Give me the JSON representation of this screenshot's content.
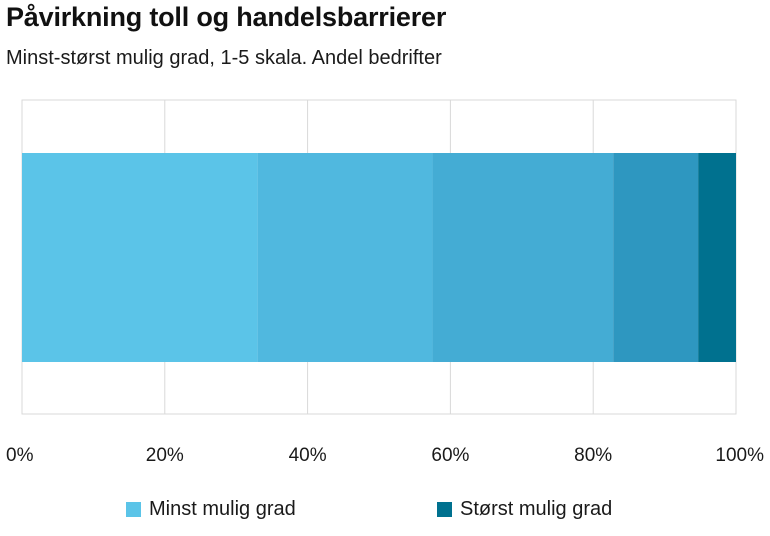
{
  "title": "Påvirkning toll og handelsbarrierer",
  "subtitle": "Minst-størst mulig grad, 1-5 skala. Andel bedrifter",
  "chart_data": {
    "type": "bar",
    "orientation": "horizontal",
    "stacked": true,
    "title": "Påvirkning toll og handelsbarrierer",
    "subtitle": "Minst-størst mulig grad, 1-5 skala. Andel bedrifter",
    "categories": [
      ""
    ],
    "series": [
      {
        "name": "Minst mulig grad",
        "values": [
          33
        ],
        "color": "#5bc4e8"
      },
      {
        "values": [
          24.5
        ],
        "color": "#50b8df"
      },
      {
        "values": [
          25.3
        ],
        "color": "#44acd4"
      },
      {
        "values": [
          11.9
        ],
        "color": "#2e97c0"
      },
      {
        "name": "Størst mulig grad",
        "values": [
          5.3
        ],
        "color": "#00718f"
      }
    ],
    "xlim": [
      0,
      100
    ],
    "xticks": [
      0,
      20,
      40,
      60,
      80,
      100
    ],
    "xtick_labels": [
      "0%",
      "20%",
      "40%",
      "60%",
      "80%",
      "100%"
    ],
    "grid": true,
    "legend_position": "bottom"
  },
  "legend": [
    {
      "label": "Minst mulig grad",
      "color": "#5bc4e8"
    },
    {
      "label": "Størst mulig grad",
      "color": "#00718f"
    }
  ]
}
